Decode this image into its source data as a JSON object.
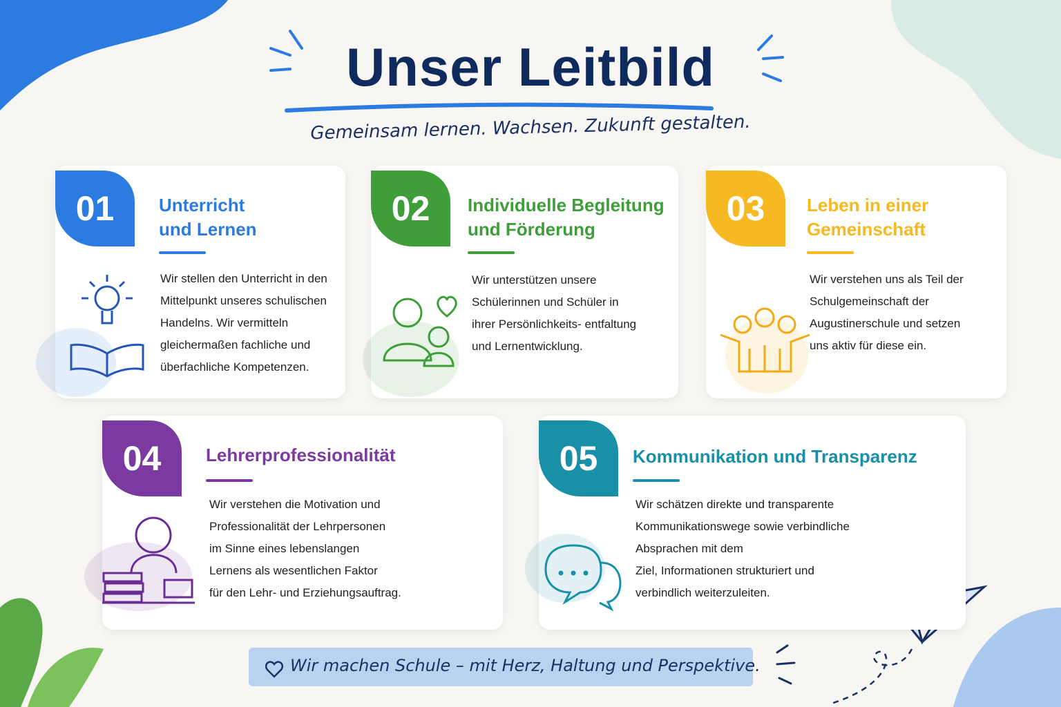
{
  "header": {
    "title": "Unser Leitbild",
    "subtitle": "Gemeinsam lernen. Wachsen. Zukunft gestalten."
  },
  "cards": [
    {
      "number": "01",
      "title": [
        "Unterricht",
        "und Lernen"
      ],
      "text": [
        "Wir stellen den Unterricht in den",
        "Mittelpunkt unseres schulischen",
        "Handelns. Wir vermitteln",
        "gleichermaßen fachliche und",
        "überfachliche Kompetenzen."
      ]
    },
    {
      "number": "02",
      "title": [
        "Individuelle Begleitung",
        "und Förderung"
      ],
      "text": [
        "Wir unterstützen unsere",
        "Schülerinnen und Schüler in",
        "ihrer Persönlichkeits- entfaltung",
        "und Lernentwicklung."
      ]
    },
    {
      "number": "03",
      "title": [
        "Leben in einer",
        "Gemeinschaft"
      ],
      "text": [
        "Wir verstehen uns als Teil der",
        "Schulgemeinschaft der",
        "Augustinerschule und setzen",
        "uns aktiv für diese ein."
      ]
    },
    {
      "number": "04",
      "title": [
        "Lehrerprofessionalität"
      ],
      "text": [
        "Wir verstehen die Motivation und",
        "Professionalität der Lehrpersonen",
        "im Sinne eines lebenslangen",
        "Lernens als wesentlichen Faktor",
        "für den Lehr- und Erziehungsauftrag."
      ]
    },
    {
      "number": "05",
      "title": [
        "Kommunikation und Transparenz"
      ],
      "text": [
        "Wir schätzen direkte und transparente",
        "Kommunikationswege sowie verbindliche",
        "Absprachen mit dem",
        "Ziel, Informationen strukturiert und",
        "verbindlich weiterzuleiten."
      ]
    }
  ],
  "footer": {
    "motto": "Wir machen Schule – mit Herz, Haltung und Perspektive."
  }
}
